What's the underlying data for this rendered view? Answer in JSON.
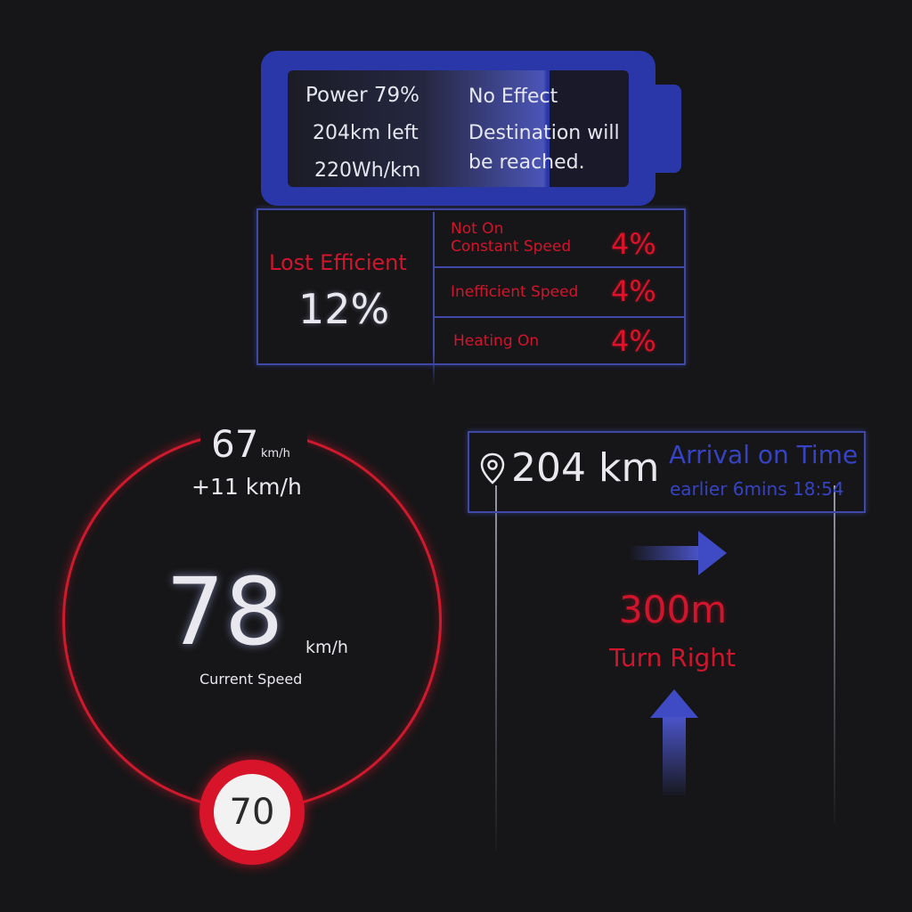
{
  "battery": {
    "power": "Power 79%",
    "range": "204km left",
    "consumption": "220Wh/km",
    "effect": "No Effect",
    "destination_line1": "Destination will",
    "destination_line2": "be reached."
  },
  "efficiency": {
    "title": "Lost Efficient",
    "total": "12%",
    "items": [
      {
        "label_line1": "Not On",
        "label_line2": "Constant Speed",
        "value": "4%"
      },
      {
        "label": "Inefficient Speed",
        "value": "4%"
      },
      {
        "label": "Heating On",
        "value": "4%"
      }
    ]
  },
  "speed": {
    "target_value": "67",
    "target_unit": "km/h",
    "delta": "+11 km/h",
    "current_value": "78",
    "current_unit": "km/h",
    "current_label": "Current Speed",
    "limit": "70"
  },
  "navigation": {
    "distance": "204 km",
    "arrival_status": "Arrival on Time",
    "arrival_detail": "earlier 6mins 18:54",
    "turn_distance": "300m",
    "turn_instruction": "Turn Right"
  },
  "colors": {
    "accent_blue": "#2a37a8",
    "alert_red": "#d0152c",
    "background": "#161618"
  }
}
